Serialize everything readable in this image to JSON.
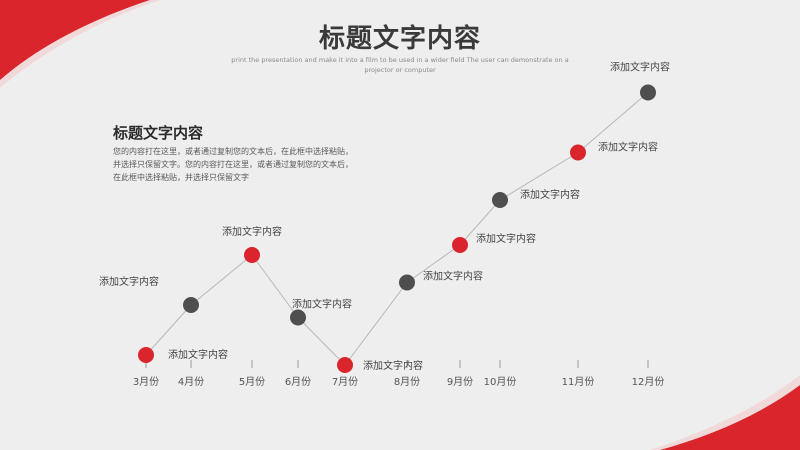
{
  "header": {
    "title": "标题文字内容",
    "subtitle": "print the presentation and make it into a film to be used in a wider field The user can demonstrate on a projector or computer"
  },
  "text_block": {
    "title": "标题文字内容",
    "body": "您的内容打在这里，或者通过复制您的文本后，在此框中选择粘贴，并选择只保留文字。您的内容打在这里，或者通过复制您的文本后，在此框中选择粘贴，并选择只保留文字"
  },
  "colors": {
    "accent": "#d9252b",
    "dark": "#4e4e4e",
    "line": "#b8b8b8",
    "background": "#eeeeee"
  },
  "chart_data": {
    "type": "line",
    "categories": [
      "3月份",
      "4月份",
      "5月份",
      "6月份",
      "7月份",
      "8月份",
      "9月份",
      "10月份",
      "11月份",
      "12月份"
    ],
    "values": [
      1,
      2,
      3,
      1.75,
      0.8,
      2.45,
      3.2,
      4.1,
      5.05,
      6.25
    ],
    "point_labels": [
      "添加文字内容",
      "添加文字内容",
      "添加文字内容",
      "添加文字内容",
      "添加文字内容",
      "添加文字内容",
      "添加文字内容",
      "添加文字内容",
      "添加文字内容",
      "添加文字内容"
    ],
    "point_colors": [
      "accent",
      "dark",
      "accent",
      "dark",
      "accent",
      "dark",
      "accent",
      "dark",
      "accent",
      "dark"
    ],
    "ylim": [
      0.5,
      6.5
    ],
    "grid": false,
    "title": "",
    "xlabel": "",
    "ylabel": ""
  }
}
